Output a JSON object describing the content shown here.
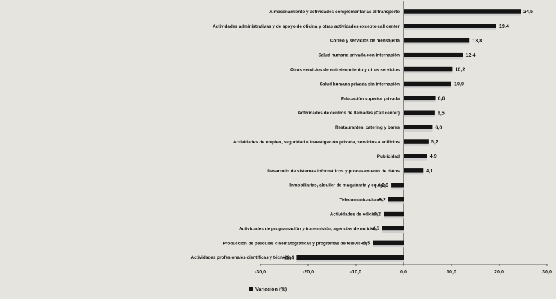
{
  "chart_data": {
    "type": "bar",
    "orientation": "horizontal",
    "categories": [
      "Almacenamiento y actividades complementarias al transporte",
      "Actividades administrativas y de apoyo de oficina y otras actividades excepto call center",
      "Correo y servicios de mensajería",
      "Salud humana privada con internación",
      "Otros servicios de entretenimiento y otros servicios",
      "Salud humana privada sin internación",
      "Educación superior privada",
      "Actividades de centros de llamadas (Call center)",
      "Restaurantes, catering y bares",
      "Actividades de empleo, seguridad e investigación privada, servicios a edificios",
      "Publicidad",
      "Desarrollo de sistemas informáticos y procesamiento de datos",
      "Inmobiliarias, alquiler de maquinaria y equipo",
      "Telecomunicaciones",
      "Actividades de edición",
      "Actividades de programación y transmisión, agencias de noticias",
      "Producción de películas cinematográficas y programas de televisión",
      "Actividades profesionales científicas y técnicas"
    ],
    "series": [
      {
        "name": "Variación (%)",
        "values": [
          24.5,
          19.4,
          13.8,
          12.4,
          10.2,
          10.0,
          6.6,
          6.5,
          6.0,
          5.2,
          4.9,
          4.1,
          -2.6,
          -3.2,
          -4.2,
          -4.5,
          -6.5,
          -22.4
        ]
      }
    ],
    "value_labels": [
      "24,5",
      "19,4",
      "13,8",
      "12,4",
      "10,2",
      "10,0",
      "6,6",
      "6,5",
      "6,0",
      "5,2",
      "4,9",
      "4,1",
      "-2,6",
      "-3,2",
      "-4,2",
      "-4,5",
      "-6,5",
      "-22,4"
    ],
    "xlim": [
      -30,
      30
    ],
    "ticks": [
      {
        "value": -30,
        "label": "-30,0"
      },
      {
        "value": -20,
        "label": "-20,0"
      },
      {
        "value": -10,
        "label": "-10,0"
      },
      {
        "value": 0,
        "label": "0,0"
      },
      {
        "value": 10,
        "label": "10,0"
      },
      {
        "value": 20,
        "label": "20,0"
      },
      {
        "value": 30,
        "label": "30,0"
      }
    ],
    "legend": {
      "label": "Variación (%)",
      "position": "bottom-center"
    },
    "grid": false,
    "colors": {
      "bar": "#141414",
      "bar_shadow": "#cfcfcf",
      "background": "#e6e4df"
    }
  }
}
